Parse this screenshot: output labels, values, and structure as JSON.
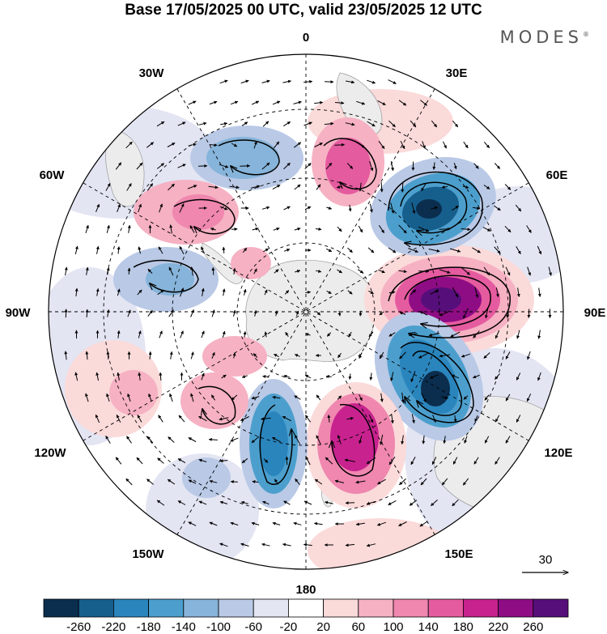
{
  "title": "Base 17/05/2025 00 UTC, valid 23/05/2025 12 UTC",
  "brand": {
    "name": "MODES",
    "mark": "®"
  },
  "longitude_labels": [
    "0",
    "30E",
    "60E",
    "90E",
    "120E",
    "150E",
    "180",
    "150W",
    "120W",
    "90W",
    "60W",
    "30W"
  ],
  "reference_vector": {
    "label": "30"
  },
  "colorbar": {
    "colors": [
      "#0b2e4e",
      "#165f8d",
      "#2a85bd",
      "#4c9fcd",
      "#86b4da",
      "#b9c9e6",
      "#e3e5f3",
      "#ffffff",
      "#fbdada",
      "#f6b1c3",
      "#ef87ae",
      "#e55b9f",
      "#c8228f",
      "#8f0d84",
      "#560f7a"
    ],
    "tick_labels": [
      "-260",
      "-220",
      "-180",
      "-140",
      "-100",
      "-60",
      "-20",
      "20",
      "60",
      "100",
      "140",
      "180",
      "220",
      "260"
    ]
  }
}
